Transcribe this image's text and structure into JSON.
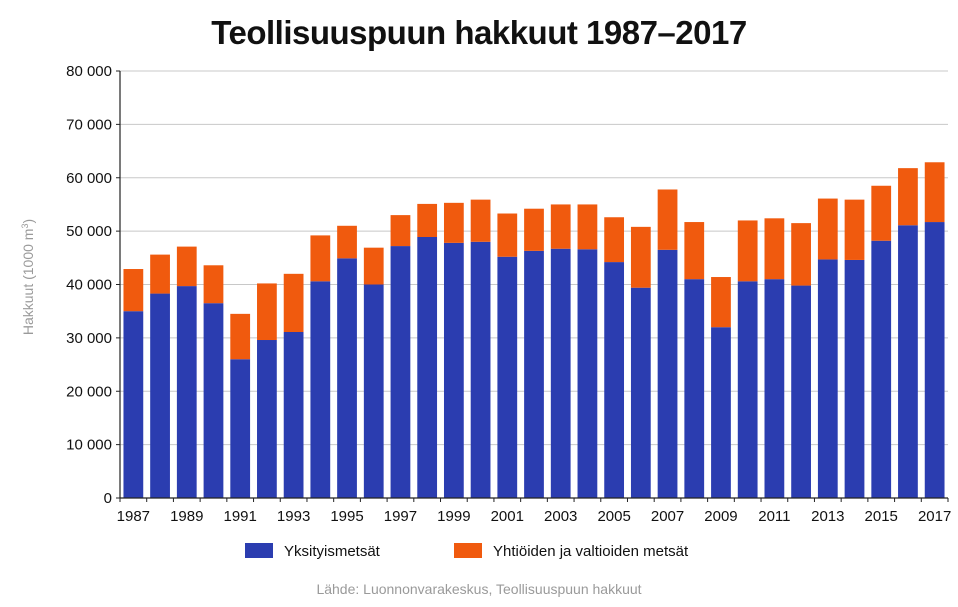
{
  "title": "Teollisuuspuun hakkuut 1987–2017",
  "source": "Lähde: Luonnonvarakeskus, Teollisuuspuun hakkuut",
  "chart_data": {
    "type": "bar",
    "stacked": true,
    "title": "Teollisuuspuun hakkuut 1987–2017",
    "ylabel": "Hakkuut (1000 m³)",
    "ylabel_main": "Hakkuut (1000 m",
    "ylabel_sup": "3",
    "ylabel_end": ")",
    "xlabel": "",
    "ylim": [
      0,
      80000
    ],
    "yticks": [
      0,
      10000,
      20000,
      30000,
      40000,
      50000,
      60000,
      70000,
      80000
    ],
    "ytick_labels": [
      "0",
      "10 000",
      "20 000",
      "30 000",
      "40 000",
      "50 000",
      "60 000",
      "70 000",
      "80 000"
    ],
    "grid": true,
    "legend_position": "bottom",
    "categories": [
      "1987",
      "1988",
      "1989",
      "1990",
      "1991",
      "1992",
      "1993",
      "1994",
      "1995",
      "1996",
      "1997",
      "1998",
      "1999",
      "2000",
      "2001",
      "2002",
      "2003",
      "2004",
      "2005",
      "2006",
      "2007",
      "2008",
      "2009",
      "2010",
      "2011",
      "2012",
      "2013",
      "2014",
      "2015",
      "2016",
      "2017"
    ],
    "xtick_labels": [
      "1987",
      "1989",
      "1991",
      "1993",
      "1995",
      "1997",
      "1999",
      "2001",
      "2003",
      "2005",
      "2007",
      "2009",
      "2011",
      "2013",
      "2015",
      "2017"
    ],
    "series": [
      {
        "name": "Yksityismetsät",
        "color": "#2b3db0",
        "values": [
          35000,
          38300,
          39700,
          36500,
          26000,
          29600,
          31100,
          40600,
          44900,
          40000,
          47200,
          48900,
          47800,
          48000,
          45200,
          46300,
          46700,
          46600,
          44200,
          39400,
          46500,
          41000,
          32000,
          40600,
          41000,
          39800,
          44700,
          44600,
          48200,
          51100,
          51700
        ]
      },
      {
        "name": "Yhtiöiden ja valtioiden metsät",
        "color": "#f05a0e",
        "values": [
          7900,
          7300,
          7400,
          7100,
          8500,
          10600,
          10900,
          8600,
          6100,
          6900,
          5800,
          6200,
          7500,
          7900,
          8100,
          7900,
          8300,
          8400,
          8400,
          11400,
          11300,
          10700,
          9400,
          11400,
          11400,
          11700,
          11400,
          11300,
          10300,
          10700,
          11200
        ]
      }
    ]
  }
}
